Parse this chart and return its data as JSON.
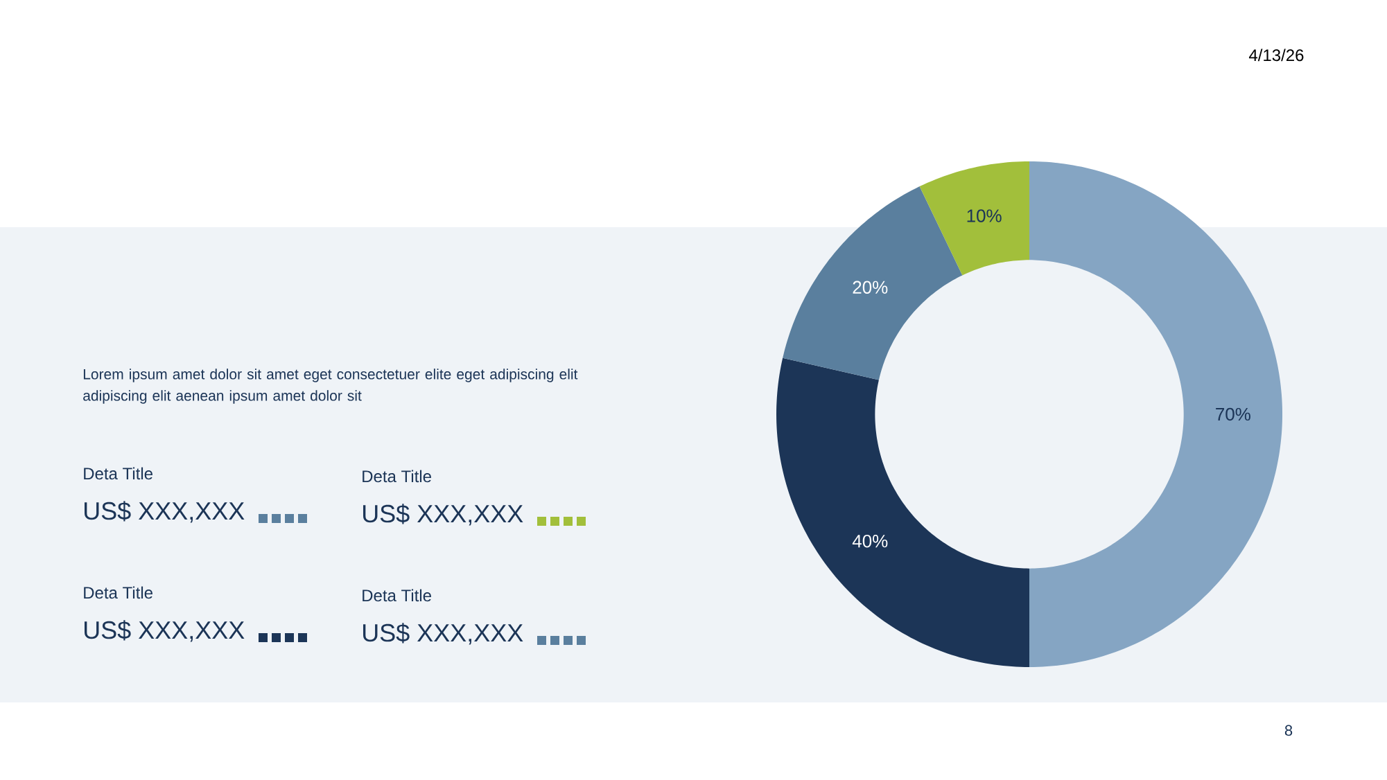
{
  "chart_data": {
    "type": "donut",
    "categories": [
      null,
      null,
      null,
      null
    ],
    "values": [
      70,
      40,
      20,
      10
    ],
    "colors": [
      "#85a5c3",
      "#1c3557",
      "#5a7f9e",
      "#a2bf3b"
    ],
    "value_labels": [
      "70%",
      "40%",
      "20%",
      "10%"
    ],
    "annotations": [
      "4/13/26",
      "Lorem ipsum amet dolor sit amet eget consectetuer elite eget adipiscing elit adipiscing elit aenean ipsum amet dolor sit",
      "Deta Title",
      "US$ XXX,XXX",
      "Deta Title",
      "US$ XXX,XXX",
      "Deta Title",
      "US$ XXX,XXX",
      "Deta Title",
      "US$ XXX,XXX",
      "8"
    ]
  }
}
